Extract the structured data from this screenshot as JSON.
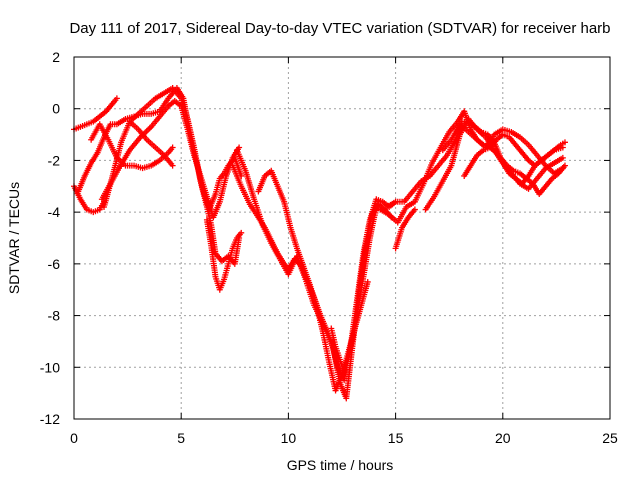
{
  "chart_data": {
    "type": "scatter",
    "title": "Day 111 of 2017, Sidereal Day-to-day VTEC variation (SDTVAR) for receiver harb",
    "xlabel": "GPS time / hours",
    "ylabel": "SDTVAR / TECUs",
    "xlim": [
      0,
      25
    ],
    "ylim": [
      -12,
      2
    ],
    "xticks": [
      "0",
      "5",
      "10",
      "15",
      "20",
      "25"
    ],
    "yticks": [
      "-12",
      "-10",
      "-8",
      "-6",
      "-4",
      "-2",
      "0",
      "2"
    ],
    "grid": true,
    "marker": "plus",
    "color": "#ff0000",
    "series": [
      {
        "x": [
          0.0,
          0.3,
          0.6,
          0.9,
          1.2,
          1.5,
          1.8,
          2.0
        ],
        "y": [
          -0.8,
          -0.7,
          -0.6,
          -0.5,
          -0.3,
          -0.1,
          0.2,
          0.4
        ]
      },
      {
        "x": [
          0.0,
          0.3,
          0.6,
          0.9,
          1.2,
          1.4
        ],
        "y": [
          -3.0,
          -3.5,
          -3.9,
          -4.0,
          -3.9,
          -3.6
        ]
      },
      {
        "x": [
          1.3,
          1.7,
          2.1,
          2.6,
          3.1,
          3.6,
          4.0,
          4.4,
          4.7,
          5.0,
          5.3,
          5.6,
          5.9,
          6.2,
          6.5,
          6.8,
          7.1,
          7.4,
          7.7
        ],
        "y": [
          -3.5,
          -2.9,
          -2.3,
          -1.6,
          -1.1,
          -0.7,
          -0.3,
          0.1,
          0.3,
          0.1,
          -0.8,
          -1.8,
          -2.6,
          -3.4,
          -4.2,
          -3.6,
          -2.6,
          -1.9,
          -1.5
        ]
      },
      {
        "x": [
          0.2,
          0.5,
          0.8,
          1.1,
          1.4,
          1.7,
          2.0,
          2.4,
          2.8,
          3.2,
          3.6,
          4.0,
          4.4,
          4.8,
          5.1,
          5.4,
          5.7,
          6.0,
          6.3,
          6.6,
          6.8,
          7.0,
          7.2,
          7.5,
          7.8
        ],
        "y": [
          -3.2,
          -2.6,
          -2.1,
          -1.7,
          -1.1,
          -0.6,
          -0.6,
          -0.4,
          -0.3,
          -0.2,
          -0.2,
          -0.1,
          0.4,
          0.8,
          0.4,
          -0.9,
          -2.0,
          -3.1,
          -3.9,
          -3.3,
          -2.7,
          -2.5,
          -2.2,
          -1.9,
          -2.6
        ]
      },
      {
        "x": [
          1.4,
          1.8,
          2.2,
          2.6,
          3.0,
          3.4,
          3.8,
          4.2,
          4.6,
          5.0,
          5.3,
          5.6,
          5.9,
          6.2,
          6.4,
          6.6,
          6.9,
          7.2,
          7.5,
          7.7
        ],
        "y": [
          -3.8,
          -2.6,
          -1.3,
          -0.5,
          -0.2,
          0.1,
          0.4,
          0.6,
          0.8,
          0.4,
          -0.4,
          -1.5,
          -2.8,
          -3.8,
          -4.5,
          -5.6,
          -5.9,
          -5.7,
          -6.0,
          -5.0
        ]
      },
      {
        "x": [
          0.8,
          1.2,
          1.6,
          2.0,
          2.4,
          2.8,
          3.2,
          3.6,
          4.0,
          4.4,
          4.6
        ],
        "y": [
          -1.2,
          -0.6,
          -1.2,
          -1.9,
          -2.2,
          -2.2,
          -2.3,
          -2.2,
          -2.0,
          -1.7,
          -1.5
        ]
      },
      {
        "x": [
          2.6,
          3.0,
          3.4,
          3.8,
          4.2,
          4.6
        ],
        "y": [
          -0.5,
          -0.8,
          -1.2,
          -1.5,
          -1.8,
          -2.2
        ]
      },
      {
        "x": [
          6.2,
          6.4,
          6.6,
          6.8,
          7.0,
          7.2,
          7.4,
          7.6,
          7.8
        ],
        "y": [
          -4.3,
          -5.3,
          -6.5,
          -7.0,
          -6.6,
          -6.0,
          -5.4,
          -5.0,
          -4.8
        ]
      },
      {
        "x": [
          7.4,
          7.8,
          8.2,
          8.6,
          8.9,
          9.2,
          9.5,
          9.8,
          10.0,
          10.3,
          10.6,
          10.9,
          11.2,
          11.5,
          11.8,
          12.1,
          12.4,
          12.7,
          13.0,
          13.3,
          13.6,
          13.9,
          14.2,
          14.5,
          14.8
        ],
        "y": [
          -2.2,
          -3.0,
          -3.7,
          -4.2,
          -4.6,
          -5.1,
          -5.6,
          -6.0,
          -6.2,
          -5.8,
          -6.1,
          -6.7,
          -7.3,
          -8.0,
          -8.6,
          -9.3,
          -10.6,
          -11.2,
          -9.1,
          -7.0,
          -5.3,
          -4.1,
          -3.7,
          -3.9,
          -4.2
        ]
      },
      {
        "x": [
          7.6,
          8.0,
          8.4,
          8.8,
          9.2,
          9.6,
          10.0,
          10.4,
          10.8,
          11.2,
          11.6,
          12.0,
          12.3,
          12.6,
          12.9,
          13.2,
          13.5,
          13.8,
          14.1,
          14.4,
          14.7,
          15.0
        ],
        "y": [
          -1.6,
          -2.4,
          -3.5,
          -4.5,
          -5.2,
          -5.8,
          -6.4,
          -5.7,
          -6.6,
          -7.6,
          -8.3,
          -9.0,
          -10.0,
          -10.5,
          -9.2,
          -7.4,
          -5.6,
          -4.3,
          -3.5,
          -3.6,
          -3.8,
          -3.6
        ]
      },
      {
        "x": [
          8.6,
          8.9,
          9.2,
          9.5,
          9.8,
          10.1,
          10.4,
          10.7,
          11.0,
          11.3,
          11.6,
          11.9,
          12.2,
          12.5,
          12.8,
          13.1,
          13.4,
          13.7
        ],
        "y": [
          -3.2,
          -2.6,
          -2.4,
          -3.0,
          -3.6,
          -4.6,
          -5.4,
          -6.1,
          -6.8,
          -7.6,
          -8.6,
          -9.8,
          -10.9,
          -10.3,
          -9.4,
          -8.5,
          -7.6,
          -6.7
        ]
      },
      {
        "x": [
          14.3,
          14.7,
          15.1,
          15.5,
          15.9,
          16.3,
          16.7,
          17.1,
          17.5,
          17.9,
          18.2,
          18.5,
          18.8,
          19.1,
          19.4,
          19.7,
          20.0,
          20.3,
          20.6,
          20.9,
          21.2,
          21.5,
          21.8,
          22.1,
          22.4,
          22.8
        ],
        "y": [
          -3.9,
          -4.1,
          -4.4,
          -3.8,
          -3.6,
          -2.9,
          -2.1,
          -1.5,
          -0.9,
          -0.5,
          -0.1,
          -0.8,
          -1.2,
          -1.4,
          -1.5,
          -1.7,
          -2.1,
          -2.5,
          -2.7,
          -2.9,
          -2.6,
          -2.2,
          -2.0,
          -1.8,
          -1.6,
          -1.5
        ]
      },
      {
        "x": [
          14.6,
          15.0,
          15.4,
          15.8,
          16.2,
          16.6,
          17.0,
          17.4,
          17.8,
          18.1,
          18.4,
          18.7,
          19.0,
          19.3,
          19.6,
          19.9,
          20.2,
          20.5,
          20.8,
          21.1,
          21.4,
          21.7,
          22.0,
          22.3,
          22.6,
          22.9
        ],
        "y": [
          -3.8,
          -3.6,
          -3.6,
          -3.2,
          -2.8,
          -2.6,
          -2.2,
          -1.8,
          -1.2,
          -0.5,
          -0.5,
          -0.7,
          -0.9,
          -1.0,
          -1.3,
          -1.9,
          -2.2,
          -2.4,
          -2.5,
          -2.7,
          -2.9,
          -3.3,
          -3.0,
          -2.7,
          -2.5,
          -2.2
        ]
      },
      {
        "x": [
          16.4,
          16.8,
          17.2,
          17.6,
          18.0,
          18.4,
          18.8,
          19.2,
          19.6,
          20.0,
          20.4,
          20.8,
          21.2,
          21.6,
          22.0,
          22.4,
          22.8
        ],
        "y": [
          -3.9,
          -3.4,
          -2.8,
          -2.2,
          -1.0,
          -0.4,
          -0.8,
          -1.1,
          -1.6,
          -2.1,
          -2.5,
          -2.9,
          -3.1,
          -2.7,
          -2.3,
          -2.1,
          -1.9
        ]
      },
      {
        "x": [
          17.2,
          17.6,
          18.0,
          18.4,
          18.8,
          19.2,
          19.6,
          20.0,
          20.4,
          20.8,
          21.2,
          21.6,
          22.0,
          22.4,
          22.8
        ],
        "y": [
          -1.6,
          -1.2,
          -0.6,
          -0.9,
          -1.2,
          -1.5,
          -1.0,
          -0.8,
          -0.9,
          -1.1,
          -1.4,
          -1.8,
          -2.2,
          -2.5,
          -2.3
        ]
      },
      {
        "x": [
          18.2,
          18.5,
          18.8,
          19.1,
          19.4,
          19.7,
          20.0,
          20.3,
          20.6,
          20.9,
          21.2,
          21.5,
          21.8,
          22.1,
          22.4,
          22.7,
          22.9
        ],
        "y": [
          -2.6,
          -2.2,
          -1.8,
          -1.6,
          -1.5,
          -1.2,
          -1.0,
          -1.1,
          -1.4,
          -1.7,
          -2.0,
          -2.2,
          -2.0,
          -1.8,
          -1.6,
          -1.4,
          -1.3
        ]
      },
      {
        "x": [
          15.0,
          15.3,
          15.6,
          15.9
        ],
        "y": [
          -5.4,
          -4.6,
          -4.2,
          -3.9
        ]
      },
      {
        "x": [
          12.0,
          12.2,
          12.4,
          12.6,
          12.8,
          13.0,
          13.2,
          13.4,
          13.6,
          13.8,
          14.0,
          14.2
        ],
        "y": [
          -8.5,
          -9.2,
          -9.7,
          -10.2,
          -9.6,
          -8.9,
          -8.0,
          -7.0,
          -6.0,
          -5.0,
          -4.2,
          -3.6
        ]
      }
    ]
  }
}
